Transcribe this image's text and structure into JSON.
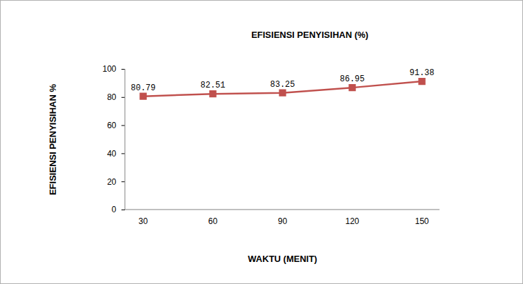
{
  "chart_data": {
    "type": "line",
    "title": "EFISIENSI PENYISIHAN (%)",
    "x_label": "WAKTU (MENIT)",
    "y_label": "EFISIENSI PENYISIHAN %",
    "categories": [
      "30",
      "60",
      "90",
      "120",
      "150"
    ],
    "values": [
      80.79,
      82.51,
      83.25,
      86.95,
      91.38
    ],
    "color": "#c0504d",
    "marker": "square",
    "line_style": "solid",
    "ylim": [
      0,
      100
    ],
    "yticks": [
      0,
      20,
      40,
      60,
      80,
      100
    ],
    "grid": false,
    "data_labels": true
  }
}
